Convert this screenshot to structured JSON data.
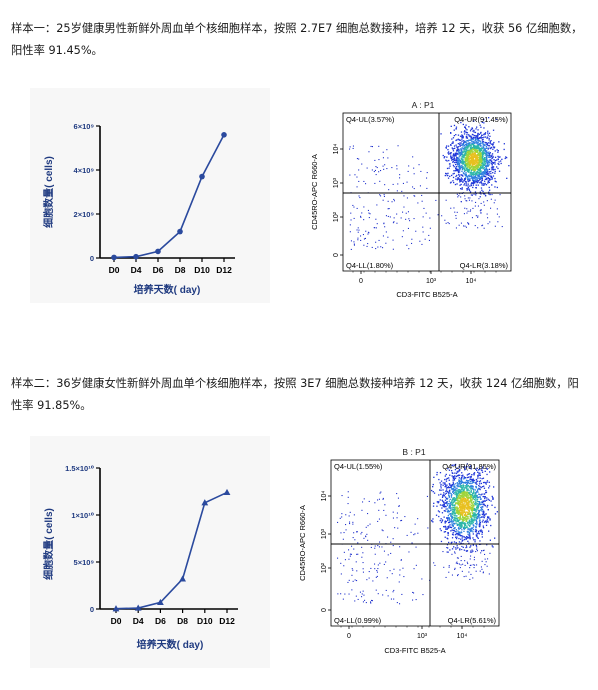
{
  "samples": [
    {
      "text": "样本一：25岁健康男性新鲜外周血单个核细胞样本，按照 2.7E7 细胞总数接种，培养 12 天，收获 56 亿细胞数，阳性率 91.45%。",
      "chart_data": {
        "type": "line",
        "marker": "circle",
        "color": "#2b4a9e",
        "categories": [
          "D0",
          "D4",
          "D6",
          "D8",
          "D10",
          "D12"
        ],
        "values": [
          27000000,
          60000000,
          300000000,
          1200000000,
          3700000000,
          5600000000
        ],
        "ylim": [
          0,
          6000000000
        ],
        "yticks": [
          0,
          2000000000,
          4000000000,
          6000000000
        ],
        "ytick_labels": [
          "0",
          "2×10⁹",
          "4×10⁹",
          "6×10⁹"
        ],
        "xlabel": "培养天数( day)",
        "ylabel": "细胞数量( cells)",
        "title": ""
      },
      "flow": {
        "title": "A : P1",
        "q_ul": "Q4-UL(3.57%)",
        "q_ur": "Q4-UR(91.45%)",
        "q_ll": "Q4-LL(1.80%)",
        "q_lr": "Q4-LR(3.18%)",
        "xlabel": "CD3-FITC B525-A",
        "ylabel": "CD45RO-APC R660-A",
        "xticks": [
          "0",
          "10³",
          "10⁴"
        ],
        "yticks": [
          "0",
          "10²",
          "10³",
          "10⁴"
        ]
      }
    },
    {
      "text": "样本二：36岁健康女性新鲜外周血单个核细胞样本，按照 3E7 细胞总数接种培养 12 天，收获 124 亿细胞数，阳性率 91.85%。",
      "chart_data": {
        "type": "line",
        "marker": "triangle",
        "color": "#2b4a9e",
        "categories": [
          "D0",
          "D4",
          "D6",
          "D8",
          "D10",
          "D12"
        ],
        "values": [
          30000000,
          100000000,
          700000000,
          3200000000,
          11300000000,
          12400000000
        ],
        "ylim": [
          0,
          15000000000
        ],
        "yticks": [
          0,
          5000000000,
          10000000000,
          15000000000
        ],
        "ytick_labels": [
          "0",
          "5×10⁹",
          "1×10¹⁰",
          "1.5×10¹⁰"
        ],
        "xlabel": "培养天数( day)",
        "ylabel": "细胞数量( cells)",
        "title": ""
      },
      "flow": {
        "title": "B : P1",
        "q_ul": "Q4-UL(1.55%)",
        "q_ur": "Q4-UR(91.85%)",
        "q_ll": "Q4-LL(0.99%)",
        "q_lr": "Q4-LR(5.61%)",
        "xlabel": "CD3-FITC B525-A",
        "ylabel": "CD45RO-APC R660-A",
        "xticks": [
          "0",
          "10³",
          "10⁴"
        ],
        "yticks": [
          "0",
          "10²",
          "10³",
          "10⁴"
        ]
      }
    }
  ]
}
